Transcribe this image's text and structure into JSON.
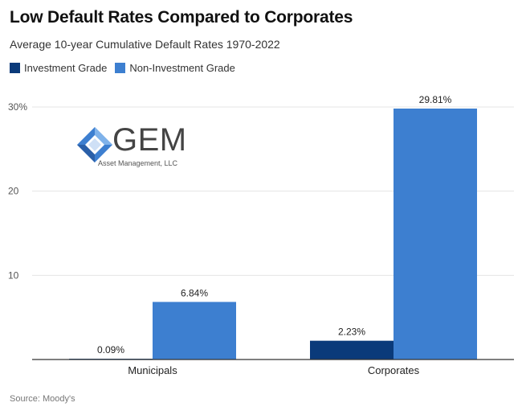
{
  "title": "Low Default Rates Compared to Corporates",
  "subtitle": "Average 10-year Cumulative Default Rates 1970-2022",
  "source": "Source: Moody's",
  "logo": {
    "name": "GEM",
    "tagline": "Asset Management, LLC"
  },
  "colors": {
    "investment": "#0a3a7a",
    "non_investment": "#3d7fd0",
    "grid": "#e4e4e4",
    "axis": "#333333"
  },
  "chart_data": {
    "type": "bar",
    "categories": [
      "Municipals",
      "Corporates"
    ],
    "series": [
      {
        "name": "Investment Grade",
        "values": [
          0.09,
          2.23
        ],
        "labels": [
          "0.09%",
          "2.23%"
        ]
      },
      {
        "name": "Non-Investment Grade",
        "values": [
          6.84,
          29.81
        ],
        "labels": [
          "6.84%",
          "29.81%"
        ]
      }
    ],
    "yticks": [
      "",
      "10",
      "20",
      "30%"
    ],
    "ylim": [
      0,
      30
    ],
    "grid": true,
    "legend": "top-left"
  }
}
